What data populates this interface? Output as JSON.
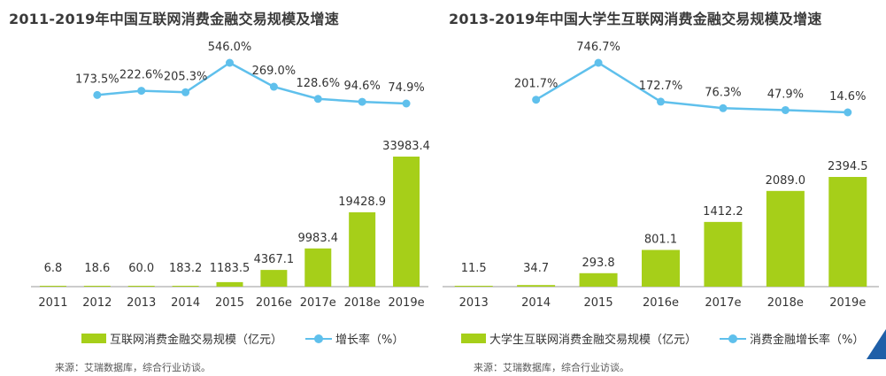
{
  "colors": {
    "bar": "#a6cf19",
    "line": "#5fc0ec",
    "axis": "#999999",
    "text": "#333333"
  },
  "charts": [
    {
      "title": "2011-2019年中国互联网消费金融交易规模及增速",
      "legend": {
        "bar": "互联网消费金融交易规模（亿元）",
        "line": "增长率（%）"
      },
      "source": "来源：艾瑞数据库，综合行业访谈。"
    },
    {
      "title": "2013-2019年中国大学生互联网消费金融交易规模及增速",
      "legend": {
        "bar": "大学生互联网消费金融交易规模（亿元）",
        "line": "消费金融增长率（%）"
      },
      "source": "来源：艾瑞数据库，综合行业访谈。"
    }
  ],
  "chart_data": [
    {
      "type": "bar",
      "title": "2011-2019年中国互联网消费金融交易规模及增速",
      "categories": [
        "2011",
        "2012",
        "2013",
        "2014",
        "2015",
        "2016e",
        "2017e",
        "2018e",
        "2019e"
      ],
      "series": [
        {
          "name": "互联网消费金融交易规模（亿元）",
          "type": "bar",
          "values": [
            6.8,
            18.6,
            60.0,
            183.2,
            1183.5,
            4367.1,
            9983.4,
            19428.9,
            33983.4
          ],
          "labels": [
            "6.8",
            "18.6",
            "60.0",
            "183.2",
            "1183.5",
            "4367.1",
            "9983.4",
            "19428.9",
            "33983.4"
          ]
        },
        {
          "name": "增长率（%）",
          "type": "line",
          "values": [
            null,
            173.5,
            222.6,
            205.3,
            546.0,
            269.0,
            128.6,
            94.6,
            74.9
          ],
          "labels": [
            "",
            "173.5%",
            "222.6%",
            "205.3%",
            "546.0%",
            "269.0%",
            "128.6%",
            "94.6%",
            "74.9%"
          ]
        }
      ],
      "legend_position": "bottom",
      "grid": false
    },
    {
      "type": "bar",
      "title": "2013-2019年中国大学生互联网消费金融交易规模及增速",
      "categories": [
        "2013",
        "2014",
        "2015",
        "2016e",
        "2017e",
        "2018e",
        "2019e"
      ],
      "series": [
        {
          "name": "大学生互联网消费金融交易规模（亿元）",
          "type": "bar",
          "values": [
            11.5,
            34.7,
            293.8,
            801.1,
            1412.2,
            2089.0,
            2394.5
          ],
          "labels": [
            "11.5",
            "34.7",
            "293.8",
            "801.1",
            "1412.2",
            "2089.0",
            "2394.5"
          ]
        },
        {
          "name": "消费金融增长率（%）",
          "type": "line",
          "values": [
            null,
            201.7,
            746.7,
            172.7,
            76.3,
            47.9,
            14.6
          ],
          "labels": [
            "",
            "201.7%",
            "746.7%",
            "172.7%",
            "76.3%",
            "47.9%",
            "14.6%"
          ]
        }
      ],
      "legend_position": "bottom",
      "grid": false
    }
  ]
}
